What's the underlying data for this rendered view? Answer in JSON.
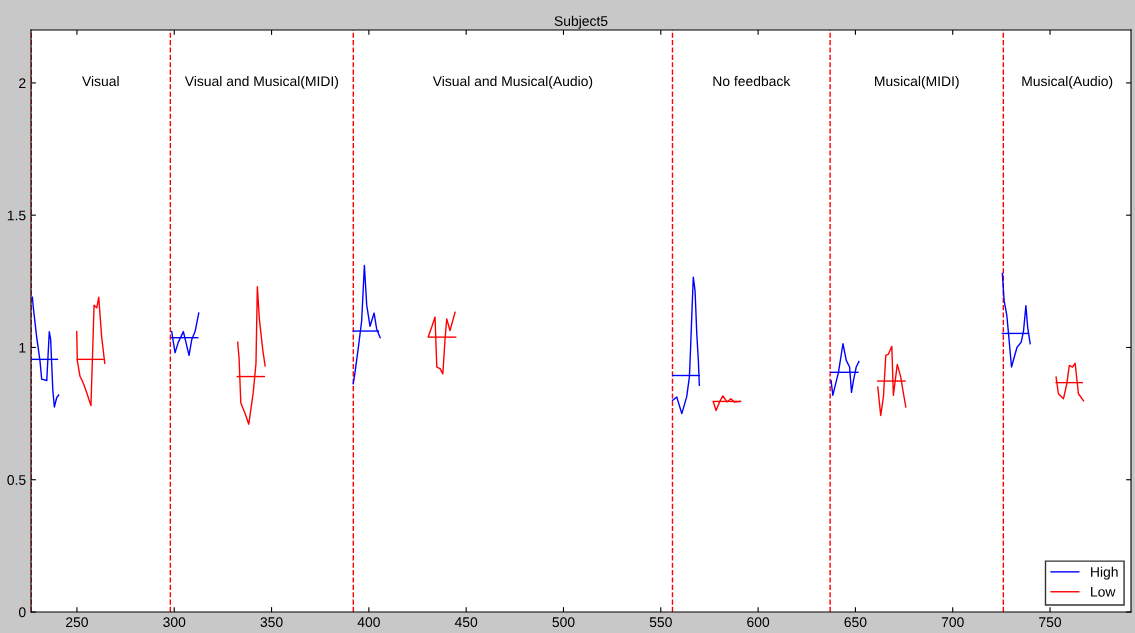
{
  "chart_data": {
    "type": "line",
    "title": "Subject5",
    "xlim": [
      226.4,
      791.6
    ],
    "ylim": [
      0,
      2.2
    ],
    "xticks": [
      250,
      300,
      350,
      400,
      450,
      500,
      550,
      600,
      650,
      700,
      750
    ],
    "yticks": [
      0,
      0.5,
      1,
      1.5,
      2
    ],
    "grid": false,
    "legend": "bottom right",
    "marker": "none",
    "line_style": "solid",
    "ref_lines": [
      {
        "axis": "x",
        "value": 226.5,
        "label": null,
        "color": "#ff0000",
        "line_style": "dashed"
      },
      {
        "axis": "x",
        "value": 298,
        "label": null,
        "color": "#ff0000",
        "line_style": "dashed"
      },
      {
        "axis": "x",
        "value": 392,
        "label": null,
        "color": "#ff0000",
        "line_style": "dashed"
      },
      {
        "axis": "x",
        "value": 556,
        "label": null,
        "color": "#ff0000",
        "line_style": "dashed"
      },
      {
        "axis": "x",
        "value": 637,
        "label": null,
        "color": "#ff0000",
        "line_style": "dashed"
      },
      {
        "axis": "x",
        "value": 726,
        "label": null,
        "color": "#ff0000",
        "line_style": "dashed"
      }
    ],
    "annotations": [
      "Visual",
      "Visual and Musical(MIDI)",
      "Visual and Musical(Audio)",
      "No feedback",
      "Musical(MIDI)",
      "Musical(Audio)"
    ],
    "series": [
      {
        "name": "High",
        "color": "#0000ff",
        "x": [
          227.1,
          227.6,
          229.3,
          231,
          231.9,
          234.5,
          235.8,
          236.5,
          237.6,
          238.4,
          239.6,
          240.6
        ],
        "values": [
          1.19,
          1.15,
          1.04,
          0.95,
          0.88,
          0.875,
          1.06,
          1.03,
          0.84,
          0.775,
          0.81,
          0.82
        ]
      },
      {
        "color": "#0000ff",
        "x": [
          227,
          240
        ],
        "values": [
          0.955,
          0.955
        ]
      },
      {
        "name": "Low",
        "color": "#ff0000",
        "x": [
          249.9,
          250.2,
          251.6,
          253,
          255,
          257.2,
          258.1,
          258.8,
          260.2,
          261.2,
          262.7,
          264.3
        ],
        "values": [
          1.06,
          0.95,
          0.89,
          0.87,
          0.83,
          0.78,
          0.99,
          1.16,
          1.15,
          1.19,
          1.04,
          0.94
        ]
      },
      {
        "color": "#ff0000",
        "x": [
          250.2,
          263.4
        ],
        "values": [
          0.955,
          0.955
        ]
      },
      {
        "color": "#0000ff",
        "x": [
          298.7,
          300.4,
          302.1,
          304.7,
          307.6,
          309,
          310.7,
          312.6
        ],
        "values": [
          1.06,
          0.98,
          1.02,
          1.06,
          0.97,
          1.03,
          1.06,
          1.13
        ]
      },
      {
        "color": "#0000ff",
        "x": [
          298.7,
          312.1
        ],
        "values": [
          1.037,
          1.037
        ]
      },
      {
        "color": "#ff0000",
        "x": [
          332.6,
          333.3,
          334.2,
          336.4,
          338.3,
          340.6,
          342,
          342.7,
          343.7,
          345.5,
          346.7
        ],
        "values": [
          1.02,
          0.96,
          0.79,
          0.75,
          0.71,
          0.83,
          0.94,
          1.23,
          1.11,
          0.99,
          0.93
        ]
      },
      {
        "color": "#ff0000",
        "x": [
          332.4,
          346.3
        ],
        "values": [
          0.89,
          0.89
        ]
      },
      {
        "color": "#0000ff",
        "x": [
          392,
          392.9,
          394.6,
          396.3,
          397.7,
          398.9,
          400.6,
          402.7,
          404,
          405.8
        ],
        "values": [
          0.863,
          0.907,
          1.0,
          1.1,
          1.31,
          1.16,
          1.08,
          1.13,
          1.07,
          1.037
        ]
      },
      {
        "color": "#0000ff",
        "x": [
          392,
          404.9
        ],
        "values": [
          1.062,
          1.062
        ]
      },
      {
        "color": "#ff0000",
        "x": [
          430.6,
          432.3,
          434,
          434.9,
          436.6,
          438,
          439.1,
          440,
          441.7,
          444.3
        ],
        "values": [
          1.042,
          1.077,
          1.115,
          0.926,
          0.92,
          0.9,
          1.026,
          1.108,
          1.064,
          1.133
        ]
      },
      {
        "color": "#ff0000",
        "x": [
          430.6,
          444.6
        ],
        "values": [
          1.039,
          1.039
        ]
      },
      {
        "color": "#0000ff",
        "x": [
          556.1,
          558.2,
          560.8,
          563.3,
          564.7,
          565.4,
          565.9,
          566.7,
          567.6,
          568.5,
          569.3,
          569.8
        ],
        "values": [
          0.8,
          0.813,
          0.75,
          0.813,
          0.889,
          1.014,
          1.115,
          1.266,
          1.215,
          1.05,
          0.951,
          0.857
        ]
      },
      {
        "color": "#0000ff",
        "x": [
          556.1,
          569.8
        ],
        "values": [
          0.894,
          0.894
        ]
      },
      {
        "color": "#ff0000",
        "x": [
          577,
          578.4,
          580.2,
          581.9,
          584,
          586,
          587.7,
          590.8
        ],
        "values": [
          0.794,
          0.762,
          0.794,
          0.817,
          0.794,
          0.806,
          0.794,
          0.796
        ]
      },
      {
        "color": "#ff0000",
        "x": [
          577,
          591
        ],
        "values": [
          0.796,
          0.796
        ]
      },
      {
        "color": "#0000ff",
        "x": [
          637.5,
          638.4,
          641.3,
          643.6,
          645.3,
          647,
          648,
          649,
          650.4,
          651.8
        ],
        "values": [
          0.875,
          0.819,
          0.907,
          1.014,
          0.951,
          0.926,
          0.83,
          0.875,
          0.926,
          0.947
        ]
      },
      {
        "color": "#0000ff",
        "x": [
          637.5,
          651.3
        ],
        "values": [
          0.906,
          0.906
        ]
      },
      {
        "color": "#ff0000",
        "x": [
          661.5,
          663,
          664.4,
          665.6,
          667,
          668.7,
          669.5,
          671.5,
          673.3,
          674.7,
          675.9
        ],
        "values": [
          0.85,
          0.743,
          0.813,
          0.97,
          0.975,
          1.004,
          0.819,
          0.936,
          0.888,
          0.825,
          0.775
        ]
      },
      {
        "color": "#ff0000",
        "x": [
          661.5,
          675.5
        ],
        "values": [
          0.873,
          0.873
        ]
      },
      {
        "color": "#0000ff",
        "x": [
          725.5,
          726.4,
          727.8,
          729,
          730.2,
          733,
          735.2,
          736.4,
          737.6,
          738.5,
          739.8
        ],
        "values": [
          1.28,
          1.177,
          1.121,
          1.026,
          0.926,
          1.0,
          1.02,
          1.064,
          1.158,
          1.077,
          1.014
        ]
      },
      {
        "color": "#0000ff",
        "x": [
          725.5,
          738.9
        ],
        "values": [
          1.053,
          1.053
        ]
      },
      {
        "color": "#ff0000",
        "x": [
          753.1,
          754.3,
          756.9,
          758.6,
          759.9,
          761.5,
          762.9,
          764.6,
          767.2
        ],
        "values": [
          0.888,
          0.825,
          0.806,
          0.862,
          0.932,
          0.926,
          0.94,
          0.825,
          0.798
        ]
      },
      {
        "color": "#ff0000",
        "x": [
          753.1,
          766.6
        ],
        "values": [
          0.867,
          0.867
        ]
      }
    ]
  }
}
